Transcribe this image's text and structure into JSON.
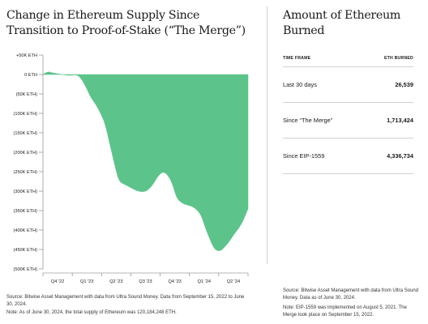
{
  "chart_data": {
    "type": "area",
    "title": "Change in Ethereum Supply Since Transition to Proof-of-Stake (“The Merge”)",
    "xlabel": "",
    "ylabel": "",
    "x_tick_labels": [
      "Q4 '22",
      "Q1 '23",
      "Q2 '23",
      "Q3 '23",
      "Q4 '23",
      "Q1 '24",
      "Q2 '24"
    ],
    "y_tick_labels": [
      "+50K ETH",
      "0 ETH",
      "(50K ETH)",
      "(100K ETH)",
      "(150K ETH)",
      "(200K ETH)",
      "(250K ETH)",
      "(300K ETH)",
      "(350K ETH)",
      "(400K ETH)",
      "(450K ETH)",
      "(500K ETH)",
      "(600K ETH)"
    ],
    "ylim": [
      -500000,
      50000
    ],
    "grid": false,
    "color": "#5cc48a",
    "series": [
      {
        "x": [
          "2022-09-15",
          "2022-10-01",
          "2022-10-15",
          "2022-11-01",
          "2022-11-15",
          "2022-12-01",
          "2022-12-15",
          "2023-01-01",
          "2023-01-15",
          "2023-02-01",
          "2023-02-15",
          "2023-03-01",
          "2023-03-15",
          "2023-04-01",
          "2023-04-15",
          "2023-05-01",
          "2023-05-15",
          "2023-06-01",
          "2023-06-15",
          "2023-07-01",
          "2023-07-15",
          "2023-08-01",
          "2023-08-15",
          "2023-09-01",
          "2023-09-15",
          "2023-10-01",
          "2023-10-15",
          "2023-11-01",
          "2023-11-15",
          "2023-12-01",
          "2023-12-15",
          "2024-01-01",
          "2024-01-15",
          "2024-02-01",
          "2024-02-15",
          "2024-03-01",
          "2024-03-15",
          "2024-04-01",
          "2024-04-15",
          "2024-05-01",
          "2024-05-15",
          "2024-06-01",
          "2024-06-15",
          "2024-06-30"
        ],
        "values": [
          0,
          8000,
          4000,
          2000,
          0,
          -2000,
          -2000,
          0,
          -10000,
          -35000,
          -60000,
          -75000,
          -95000,
          -125000,
          -175000,
          -230000,
          -275000,
          -282000,
          -288000,
          -295000,
          -300000,
          -302000,
          -298000,
          -283000,
          -263000,
          -250000,
          -255000,
          -278000,
          -318000,
          -330000,
          -335000,
          -338000,
          -345000,
          -360000,
          -395000,
          -425000,
          -450000,
          -455000,
          -445000,
          -430000,
          -412000,
          -395000,
          -375000,
          -345000
        ]
      }
    ]
  },
  "source_left": "Source: Bitwise Asset Management with data from Ultra Sound Money. Data from September 15, 2022 to June 30, 2024.",
  "note_left": "Note: As of June 30, 2024, the total supply of Ethereum was 120,184,248 ETH.",
  "table": {
    "title": "Amount of Ethereum Burned",
    "col_timeframe": "TIME FRAME",
    "col_burned": "ETH BURNED",
    "rows": [
      {
        "label": "Last 30 days",
        "value": "26,539"
      },
      {
        "label": "Since “The Merge”",
        "value": "1,713,424"
      },
      {
        "label": "Since EIP-1559",
        "value": "4,336,734"
      }
    ]
  },
  "source_right": "Source: Bitwise Asset Management with data from Ultra Sound Money. Data as of June 30, 2024.",
  "note_right": "Note: EIP-1559 was implemented on August 5, 2021. The Merge took place on September 15, 2022."
}
